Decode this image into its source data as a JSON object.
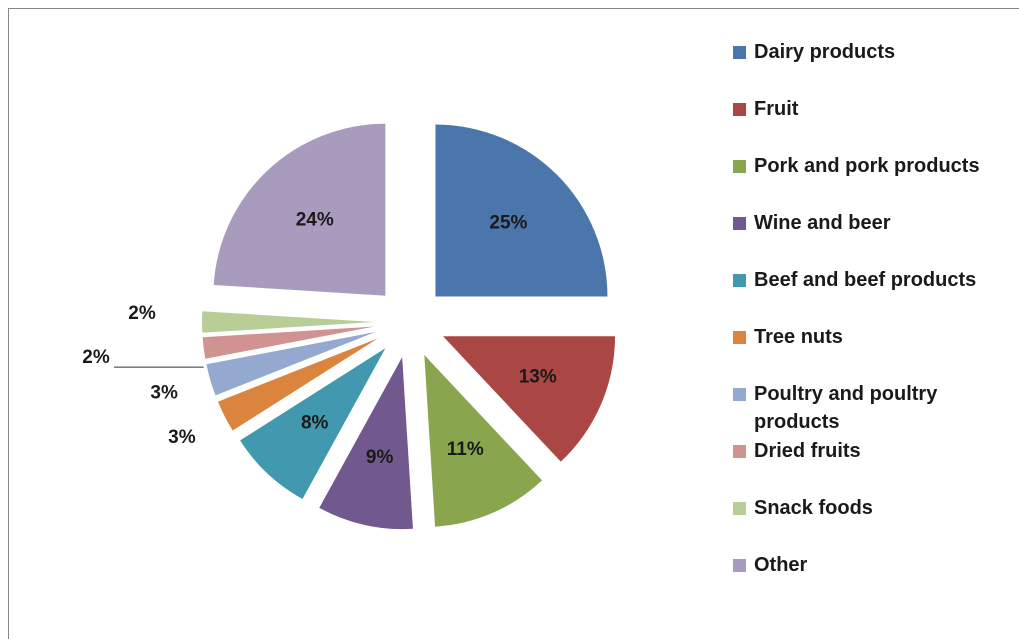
{
  "chart_data": {
    "type": "pie",
    "categories": [
      "Dairy products",
      "Fruit",
      "Pork and pork products",
      "Wine and beer",
      "Beef and beef products",
      "Tree nuts",
      "Poultry and poultry products",
      "Dried fruits",
      "Snack foods",
      "Other"
    ],
    "values": [
      25,
      13,
      11,
      9,
      8,
      3,
      3,
      2,
      2,
      24
    ],
    "value_labels": [
      "25%",
      "13%",
      "11%",
      "9%",
      "8%",
      "3%",
      "3%",
      "2%",
      "2%",
      "24%"
    ],
    "colors": [
      "#4a76ac",
      "#aa4643",
      "#89a54e",
      "#71588f",
      "#4198af",
      "#db843d",
      "#93a9cf",
      "#d19392",
      "#b9cd96",
      "#a99bbd"
    ],
    "legend": "right"
  }
}
